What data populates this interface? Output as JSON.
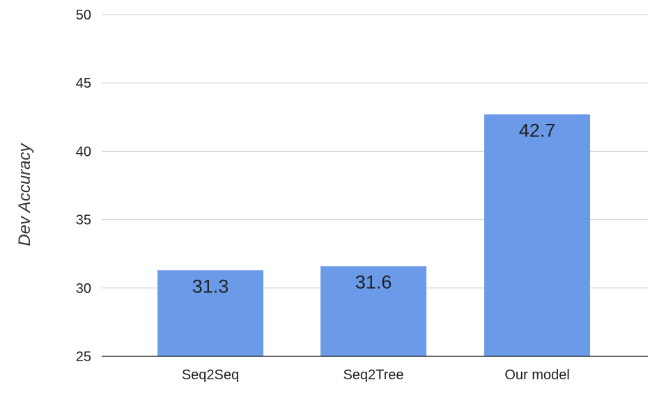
{
  "chart_data": {
    "type": "bar",
    "categories": [
      "Seq2Seq",
      "Seq2Tree",
      "Our model"
    ],
    "values": [
      31.3,
      31.6,
      42.7
    ],
    "data_labels": [
      "31.3",
      "31.6",
      "42.7"
    ],
    "title": "",
    "xlabel": "",
    "ylabel": "Dev Accuracy",
    "ylim": [
      25,
      50
    ],
    "yticks": [
      25,
      30,
      35,
      40,
      45,
      50
    ],
    "ytick_labels": [
      "25",
      "30",
      "35",
      "40",
      "45",
      "50"
    ],
    "grid": true,
    "legend": "none"
  },
  "colors": {
    "bar": "#6b9ae8",
    "grid": "#d2d2d2",
    "axis": "#333333",
    "text": "#1f1f1f"
  }
}
